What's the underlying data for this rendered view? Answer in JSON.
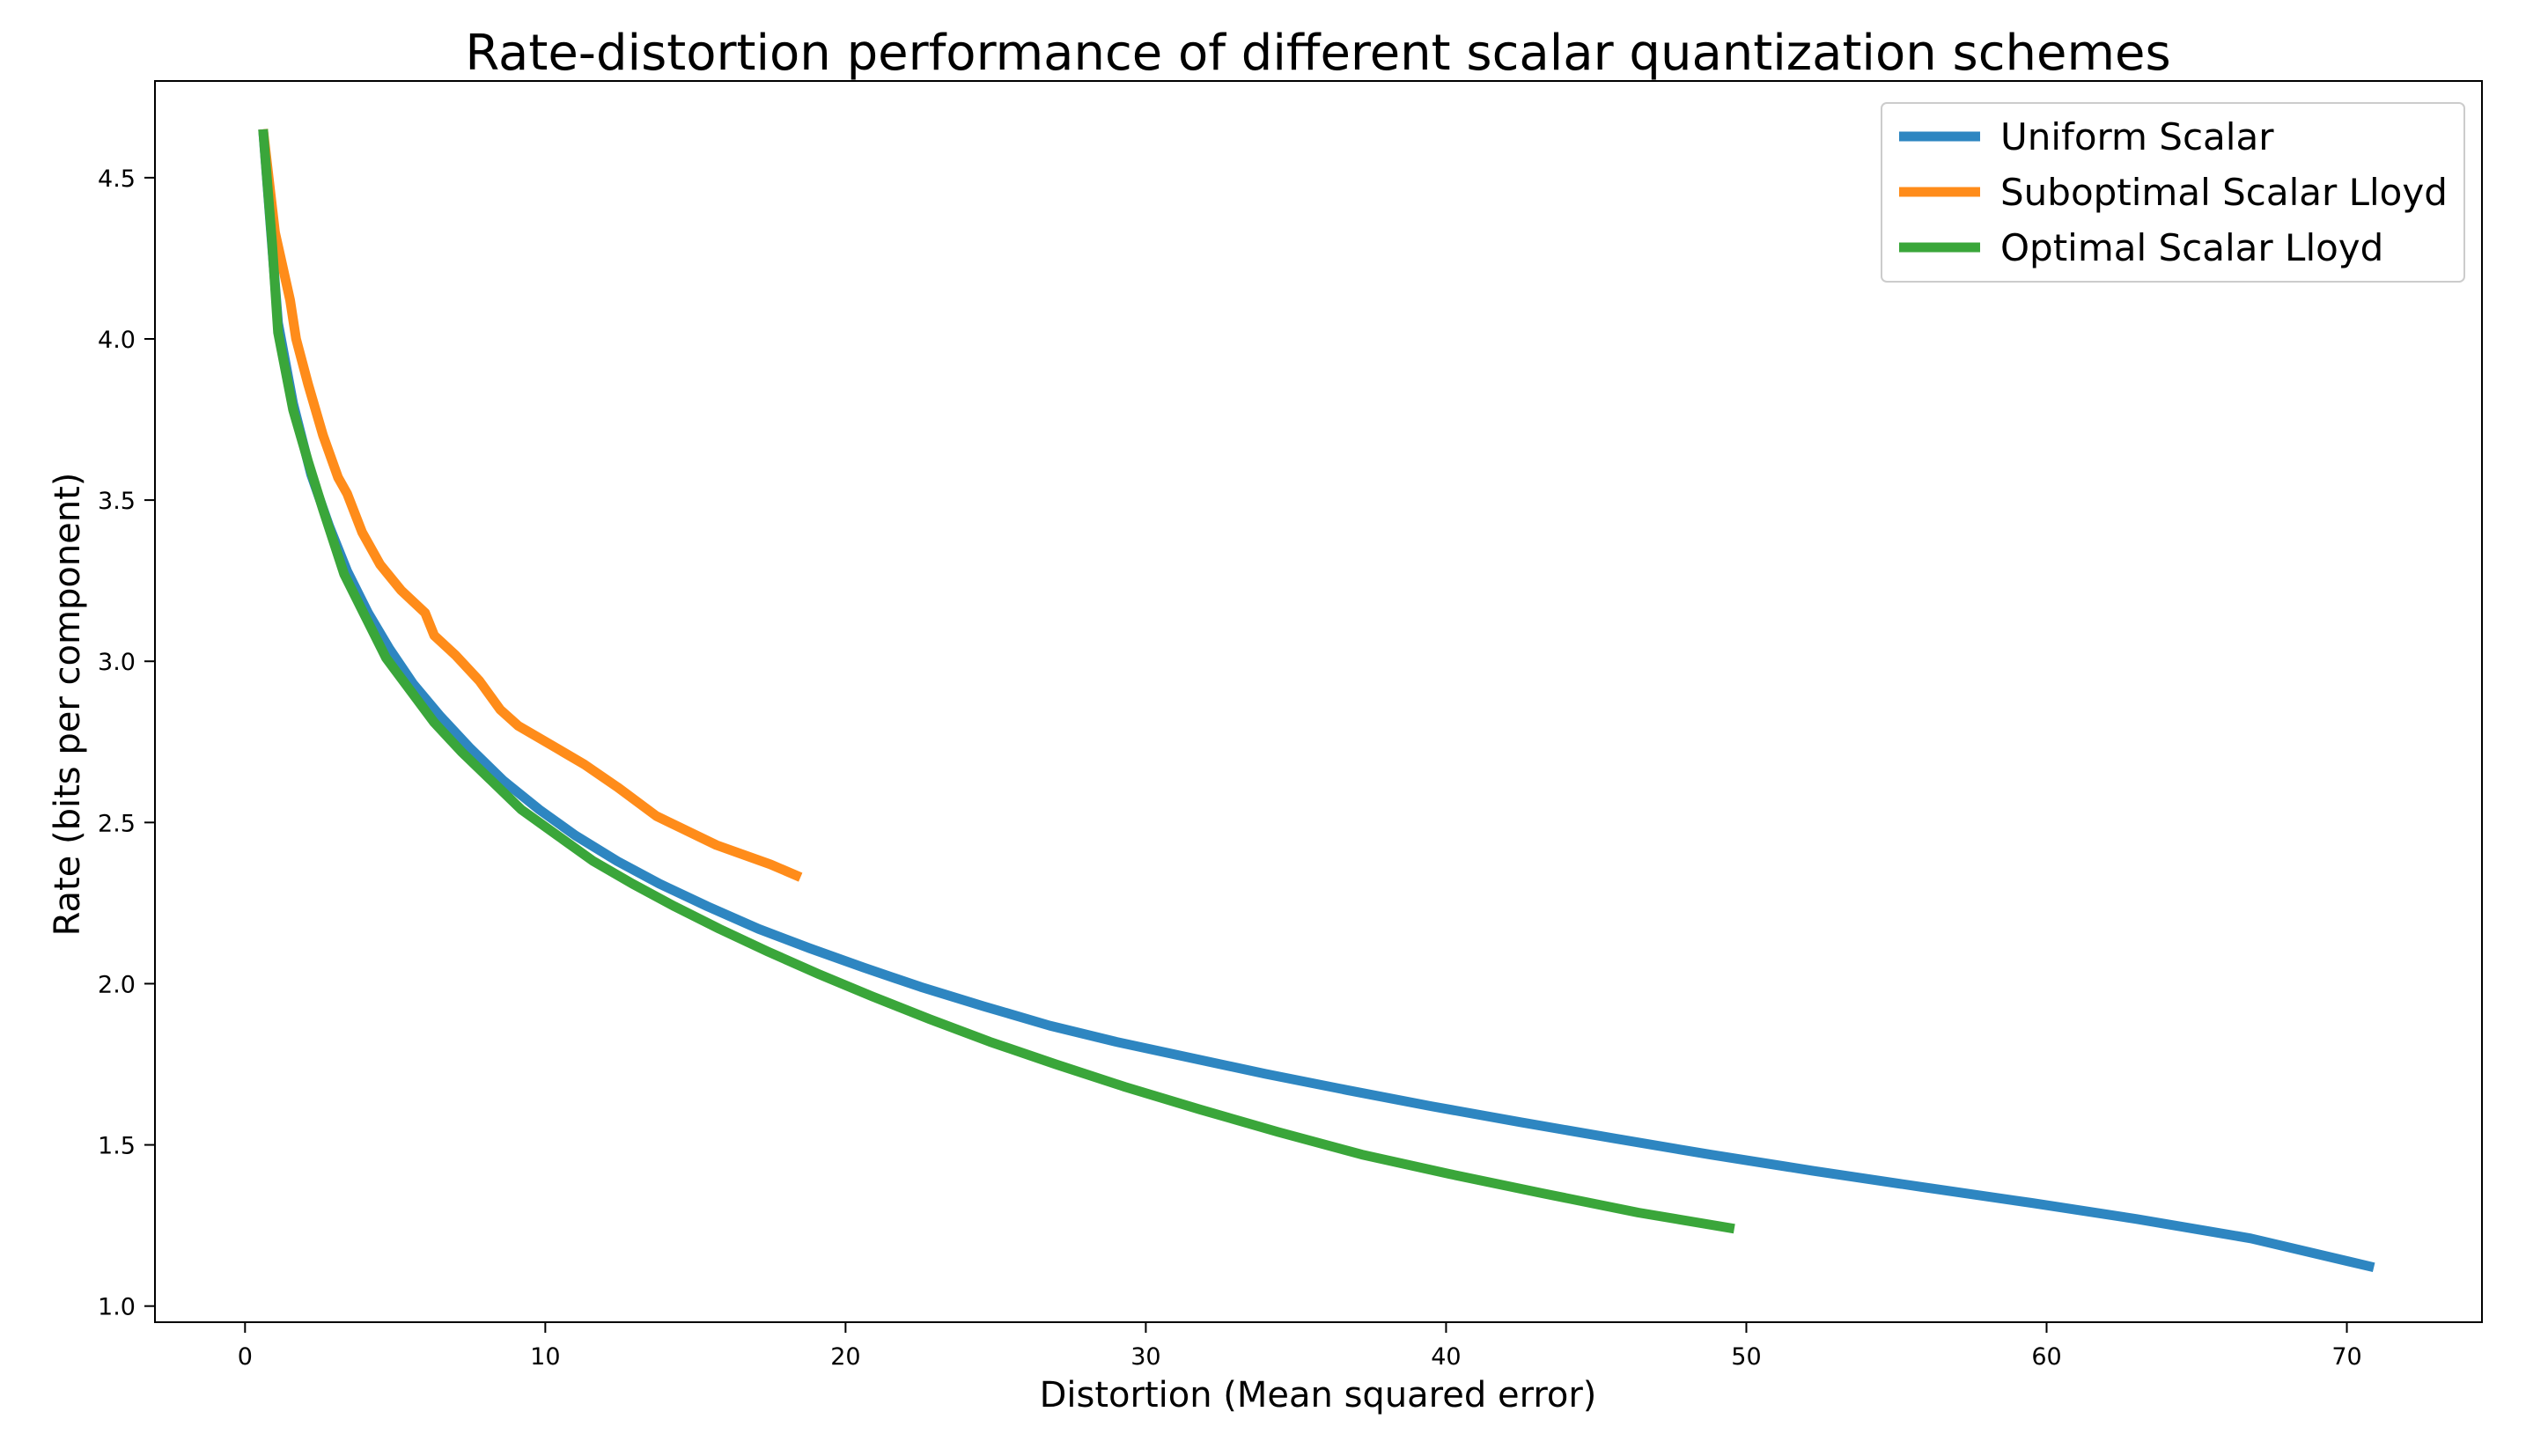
{
  "chart_data": {
    "type": "line",
    "title": "Rate-distortion performance of different scalar quantization schemes",
    "xlabel": "Distortion (Mean squared error)",
    "ylabel": "Rate (bits per component)",
    "xlim": [
      -3,
      74.5
    ],
    "ylim": [
      0.95,
      4.8
    ],
    "xticks": [
      0,
      10,
      20,
      30,
      40,
      50,
      60,
      70
    ],
    "yticks": [
      1.0,
      1.5,
      2.0,
      2.5,
      3.0,
      3.5,
      4.0,
      4.5
    ],
    "xtick_labels": [
      "0",
      "10",
      "20",
      "30",
      "40",
      "50",
      "60",
      "70"
    ],
    "ytick_labels": [
      "1.0",
      "1.5",
      "2.0",
      "2.5",
      "3.0",
      "3.5",
      "4.0",
      "4.5"
    ],
    "grid": false,
    "legend_position": "top-right",
    "series": [
      {
        "name": "Uniform Scalar",
        "color": "#2e86c1",
        "x": [
          0.6,
          1.1,
          1.6,
          2.2,
          2.8,
          3.4,
          4.1,
          4.8,
          5.6,
          6.5,
          7.5,
          8.6,
          9.8,
          11.0,
          12.4,
          13.8,
          15.4,
          17.1,
          18.8,
          20.6,
          22.5,
          24.6,
          26.8,
          29.0,
          31.5,
          34.0,
          36.7,
          39.5,
          42.5,
          45.6,
          48.8,
          52.2,
          55.8,
          59.5,
          63.0,
          66.8,
          70.9
        ],
        "y": [
          4.65,
          4.05,
          3.8,
          3.58,
          3.42,
          3.28,
          3.15,
          3.04,
          2.93,
          2.83,
          2.73,
          2.63,
          2.54,
          2.46,
          2.38,
          2.31,
          2.24,
          2.17,
          2.11,
          2.05,
          1.99,
          1.93,
          1.87,
          1.82,
          1.77,
          1.72,
          1.67,
          1.62,
          1.57,
          1.52,
          1.47,
          1.42,
          1.37,
          1.32,
          1.27,
          1.21,
          1.12
        ]
      },
      {
        "name": "Suboptimal Scalar Lloyd",
        "color": "#ff8c1a",
        "x": [
          0.6,
          1.0,
          1.5,
          1.7,
          2.1,
          2.6,
          3.1,
          3.4,
          3.9,
          4.5,
          5.2,
          6.0,
          6.3,
          7.0,
          7.8,
          8.5,
          9.1,
          10.2,
          11.3,
          12.4,
          13.7,
          15.7,
          17.5,
          18.5
        ],
        "y": [
          4.65,
          4.33,
          4.12,
          4.0,
          3.86,
          3.7,
          3.57,
          3.52,
          3.4,
          3.3,
          3.22,
          3.15,
          3.08,
          3.02,
          2.94,
          2.85,
          2.8,
          2.74,
          2.68,
          2.61,
          2.52,
          2.43,
          2.37,
          2.33
        ]
      },
      {
        "name": "Optimal Scalar Lloyd",
        "color": "#3aa63a",
        "x": [
          0.6,
          0.9,
          1.1,
          1.6,
          2.1,
          2.6,
          3.3,
          4.0,
          4.7,
          5.5,
          6.3,
          7.2,
          8.2,
          9.2,
          10.4,
          11.6,
          12.9,
          14.3,
          15.8,
          17.4,
          19.1,
          20.9,
          22.8,
          24.8,
          27.0,
          29.3,
          31.8,
          34.4,
          37.2,
          40.1,
          43.2,
          46.4,
          49.6
        ],
        "y": [
          4.65,
          4.3,
          4.02,
          3.78,
          3.62,
          3.47,
          3.27,
          3.14,
          3.01,
          2.91,
          2.81,
          2.72,
          2.63,
          2.54,
          2.46,
          2.38,
          2.31,
          2.24,
          2.17,
          2.1,
          2.03,
          1.96,
          1.89,
          1.82,
          1.75,
          1.68,
          1.61,
          1.54,
          1.47,
          1.41,
          1.35,
          1.29,
          1.24
        ]
      }
    ]
  }
}
